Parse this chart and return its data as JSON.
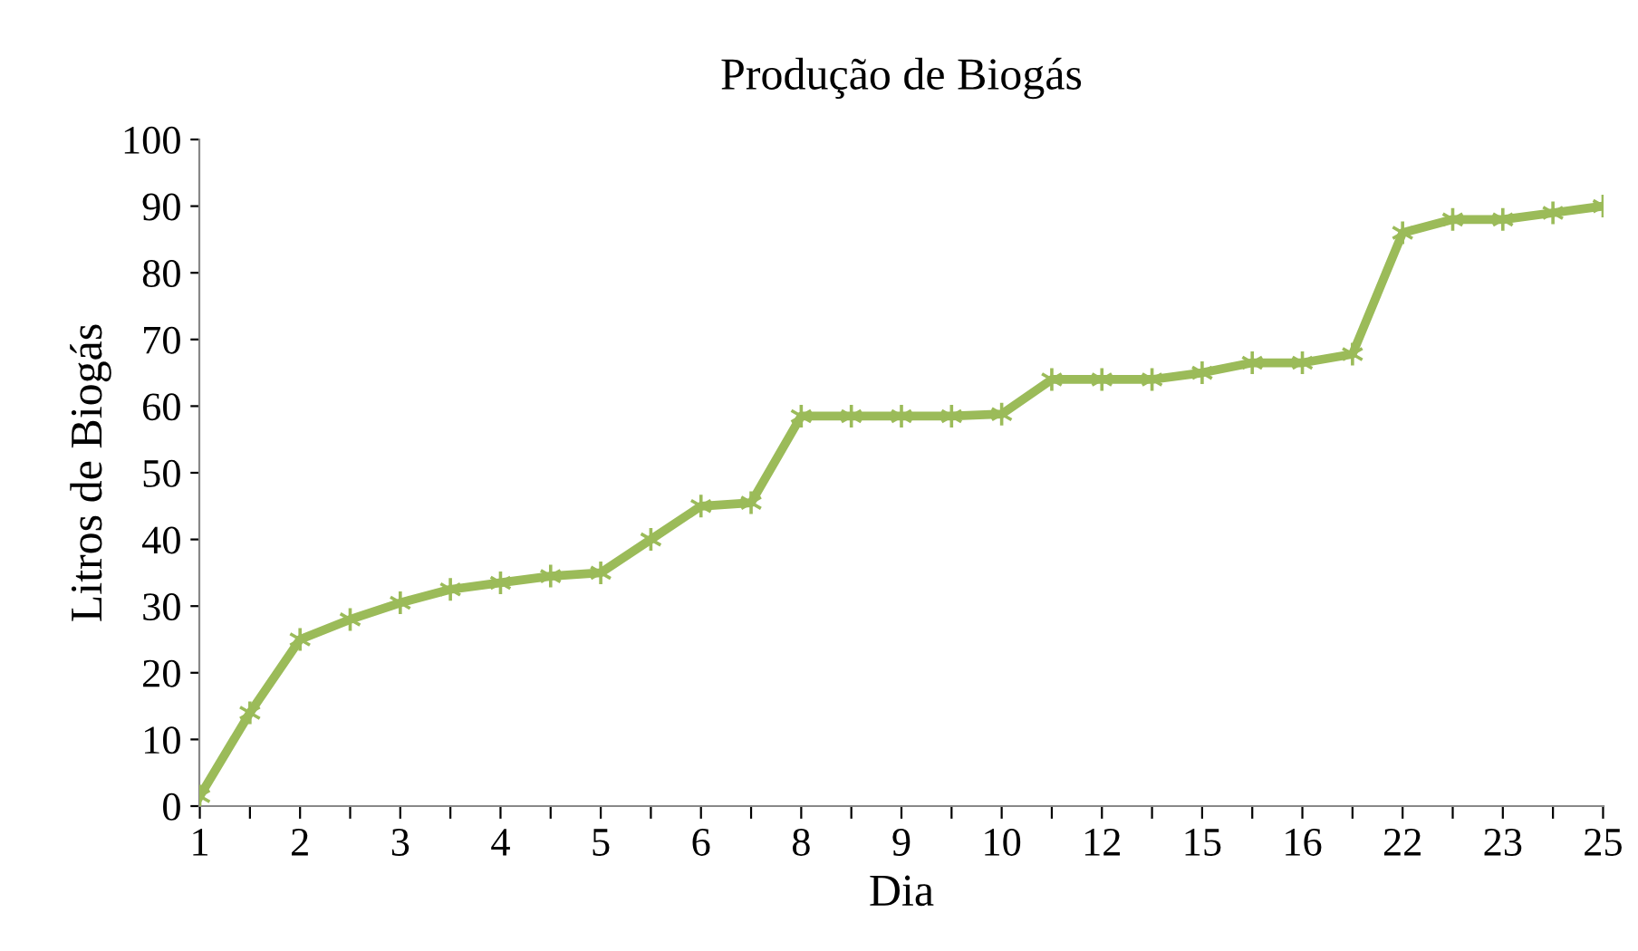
{
  "chart_data": {
    "type": "line",
    "title": "Produção de Biogás",
    "xlabel": "Dia",
    "ylabel": "Litros de Biogás",
    "categories": [
      "1",
      null,
      "2",
      null,
      "3",
      null,
      "4",
      null,
      "5",
      null,
      "6",
      null,
      "8",
      null,
      "9",
      null,
      "10",
      null,
      "12",
      null,
      "15",
      null,
      "16",
      null,
      "22",
      null,
      "23",
      null,
      "25"
    ],
    "series": [
      {
        "color": "#9bbb59",
        "values": [
          1.5,
          14,
          25,
          28,
          30.5,
          32.5,
          33.5,
          34.5,
          35,
          40,
          45,
          45.5,
          58.5,
          58.5,
          58.5,
          58.5,
          58.8,
          64,
          64,
          64,
          65,
          66.5,
          66.5,
          67.8,
          86,
          88,
          88,
          89,
          90
        ]
      }
    ],
    "ylim": [
      0,
      100
    ],
    "yticks": [
      0,
      10,
      20,
      30,
      40,
      50,
      60,
      70,
      80,
      90,
      100
    ],
    "grid": false,
    "legend": false,
    "marker": "cross",
    "line_style": "solid"
  }
}
